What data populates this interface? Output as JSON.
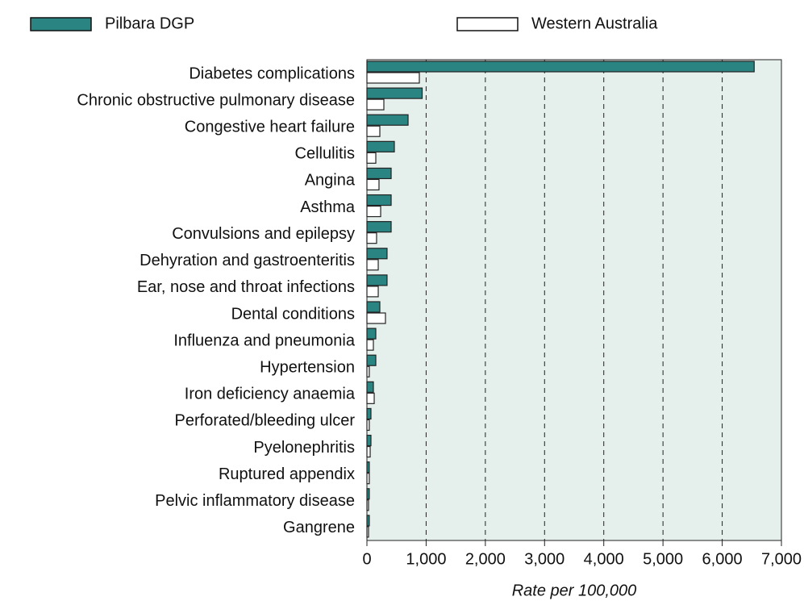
{
  "chart_data": {
    "type": "barh",
    "xlabel": "Rate per 100,000",
    "categories": [
      "Diabetes complications",
      "Chronic obstructive pulmonary disease",
      "Congestive heart failure",
      "Cellulitis",
      "Angina",
      "Asthma",
      "Convulsions and epilepsy",
      "Dehyration and gastroenteritis",
      "Ear, nose and throat infections",
      "Dental conditions",
      "Influenza and pneumonia",
      "Hypertension",
      "Iron deficiency anaemia",
      "Perforated/bleeding ulcer",
      "Pyelonephritis",
      "Ruptured appendix",
      "Pelvic inflammatory disease",
      "Gangrene"
    ],
    "series": [
      {
        "name": "Pilbara DGP",
        "color": "#2a8582",
        "values": [
          6540,
          933,
          695,
          463,
          409,
          409,
          409,
          340,
          340,
          218,
          150,
          150,
          109,
          68,
          68,
          40,
          40,
          40
        ]
      },
      {
        "name": "Western Australia",
        "color": "#ffffff",
        "values": [
          885,
          286,
          218,
          150,
          204,
          232,
          163,
          191,
          191,
          313,
          109,
          40,
          123,
          40,
          55,
          40,
          27,
          27
        ]
      }
    ],
    "xlim": [
      0,
      7000
    ],
    "xticks": [
      0,
      {
        "value": 1000,
        "label": "1,000"
      },
      {
        "value": 2000,
        "label": "2,000"
      },
      {
        "value": 3000,
        "label": "3,000"
      },
      {
        "value": 4000,
        "label": "4,000"
      },
      {
        "value": 5000,
        "label": "5,000"
      },
      {
        "value": 6000,
        "label": "6,000"
      },
      {
        "value": 7000,
        "label": "7,000"
      }
    ],
    "grid": true
  }
}
